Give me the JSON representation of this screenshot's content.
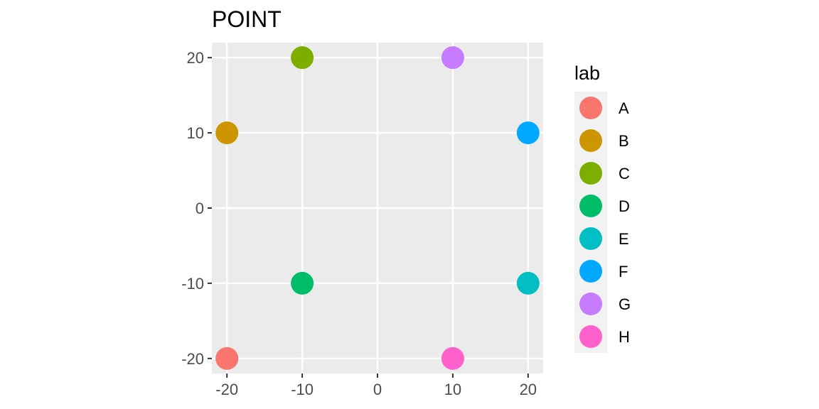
{
  "chart_data": {
    "type": "scatter",
    "title": "POINT",
    "xlabel": "",
    "ylabel": "",
    "xlim": [
      -22,
      22
    ],
    "ylim": [
      -22,
      22
    ],
    "x_ticks": [
      -20,
      -10,
      0,
      10,
      20
    ],
    "y_ticks": [
      -20,
      -10,
      0,
      10,
      20
    ],
    "grid": true,
    "legend_position": "right",
    "legend_title": "lab",
    "points": [
      {
        "label": "A",
        "x": -20,
        "y": -20,
        "color": "#F8766D"
      },
      {
        "label": "B",
        "x": -20,
        "y": 10,
        "color": "#CD9600"
      },
      {
        "label": "C",
        "x": -10,
        "y": 20,
        "color": "#7CAE00"
      },
      {
        "label": "D",
        "x": -10,
        "y": -10,
        "color": "#00BE67"
      },
      {
        "label": "E",
        "x": 20,
        "y": -10,
        "color": "#00BFC4"
      },
      {
        "label": "F",
        "x": 20,
        "y": 10,
        "color": "#00A9FF"
      },
      {
        "label": "G",
        "x": 10,
        "y": 20,
        "color": "#C77CFF"
      },
      {
        "label": "H",
        "x": 10,
        "y": -20,
        "color": "#FF61CC"
      }
    ],
    "colors": {
      "panel_background": "#EBEBEB",
      "grid_major": "#FFFFFF",
      "tick_label": "#4D4D4D",
      "axis_tick": "#333333",
      "legend_key_background": "#F2F2F2"
    }
  }
}
